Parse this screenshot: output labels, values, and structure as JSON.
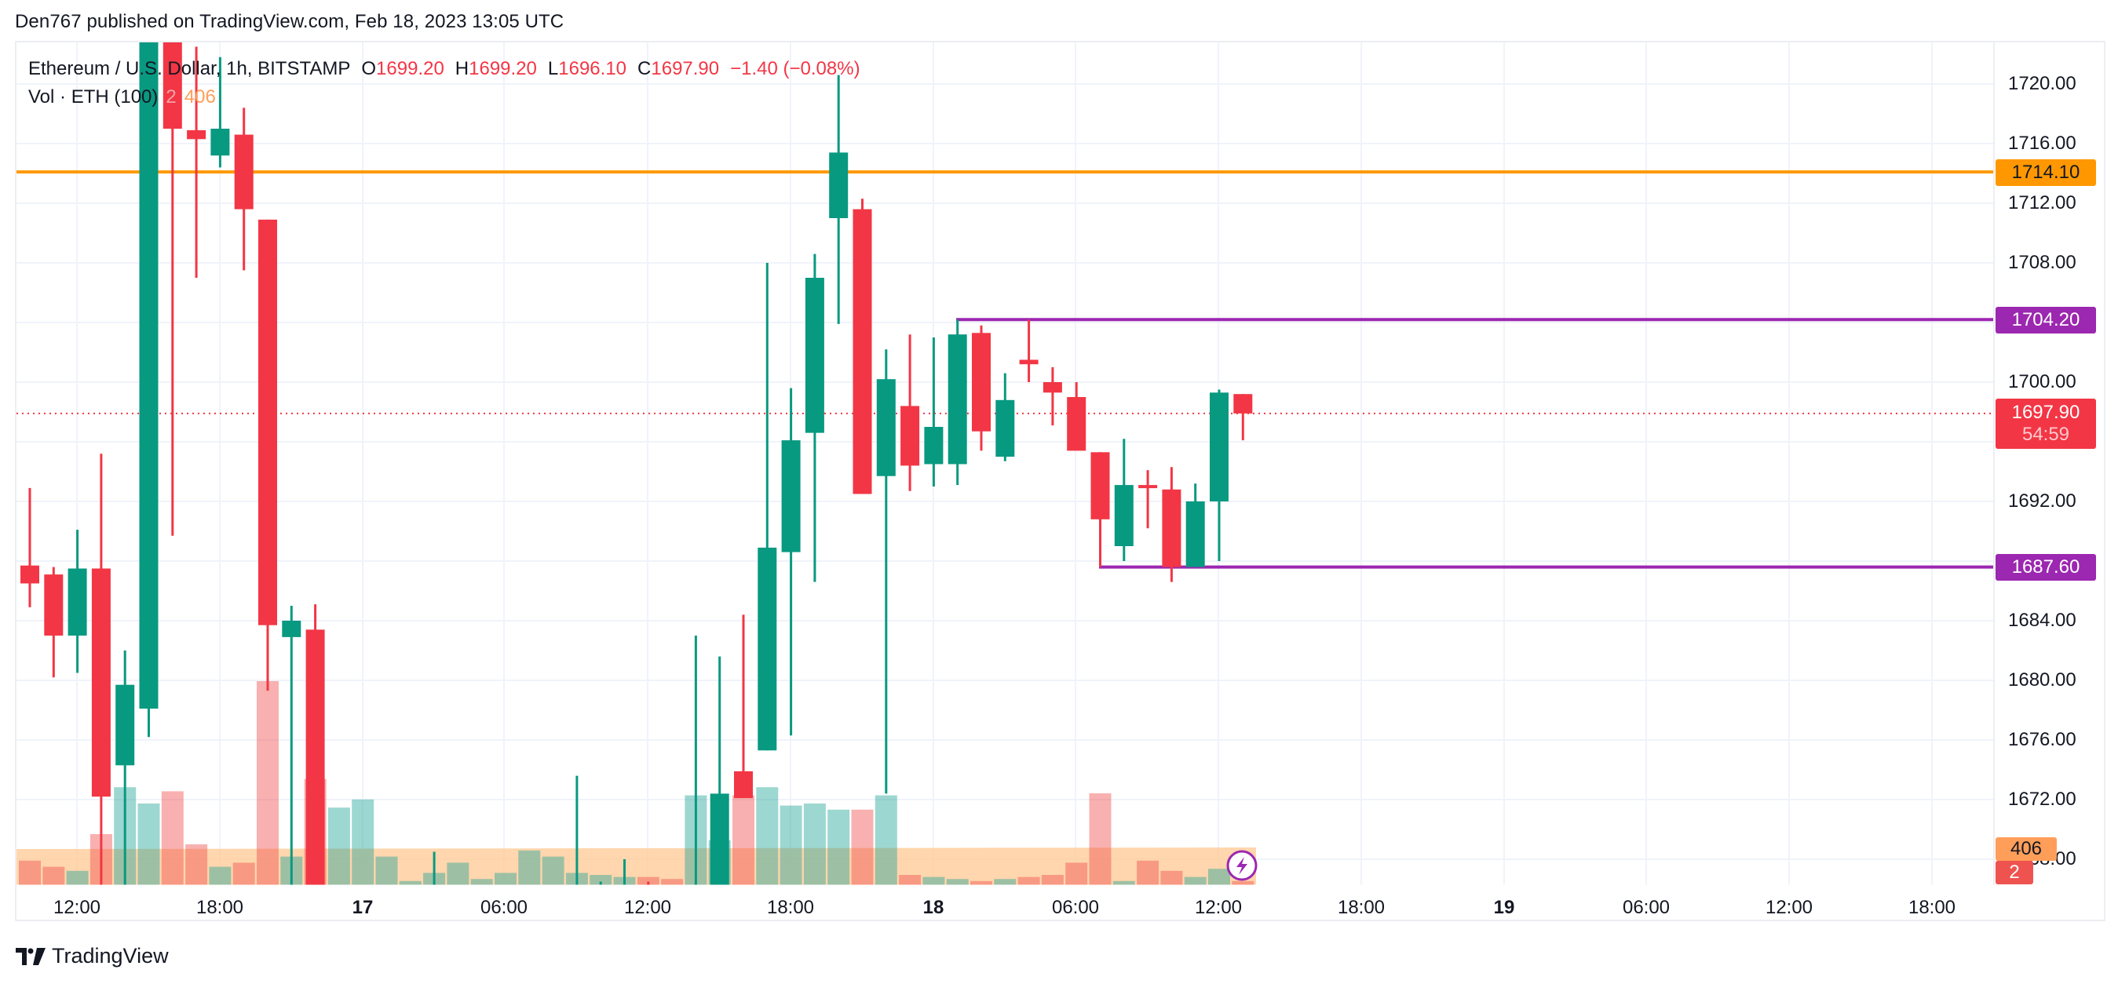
{
  "publisher": "Den767 published on TradingView.com, Feb 18, 2023 13:05 UTC",
  "legend": {
    "symbol": "Ethereum / U.S. Dollar, 1h, BITSTAMP",
    "o_label": "O",
    "o_value": "1699.20",
    "h_label": "H",
    "h_value": "1699.20",
    "l_label": "L",
    "l_value": "1696.10",
    "c_label": "C",
    "c_value": "1697.90",
    "change": "−1.40 (−0.08%)",
    "volume_label": "Vol · ETH (100)",
    "volume_value": "2",
    "volume_ma": "406"
  },
  "price_axis": {
    "ticks": [
      "1720.00",
      "1716.00",
      "1712.00",
      "1708.00",
      "1700.00",
      "1692.00",
      "1684.00",
      "1680.00",
      "1676.00",
      "1672.00",
      "1668.00"
    ],
    "labels": {
      "resistance": "1714.10",
      "range_high": "1704.20",
      "last_price": "1697.90",
      "countdown": "54:59",
      "range_low": "1687.60",
      "volume_ma": "406",
      "volume": "2"
    }
  },
  "time_axis": [
    {
      "label": "12:00",
      "bold": false
    },
    {
      "label": "18:00",
      "bold": false
    },
    {
      "label": "17",
      "bold": true
    },
    {
      "label": "06:00",
      "bold": false
    },
    {
      "label": "12:00",
      "bold": false
    },
    {
      "label": "18:00",
      "bold": false
    },
    {
      "label": "18",
      "bold": true
    },
    {
      "label": "06:00",
      "bold": false
    },
    {
      "label": "12:00",
      "bold": false
    },
    {
      "label": "18:00",
      "bold": false
    },
    {
      "label": "19",
      "bold": true
    },
    {
      "label": "06:00",
      "bold": false
    },
    {
      "label": "12:00",
      "bold": false
    },
    {
      "label": "18:00",
      "bold": false
    }
  ],
  "footer": {
    "brand": "TradingView"
  },
  "colors": {
    "up": "#089981",
    "down": "#f23645",
    "resistance_line": "#ff9800",
    "range_lines": "#9c27b0",
    "volume_ma_fill": "#ffcc99",
    "grid": "#f0f3fa"
  },
  "chart_data": {
    "type": "candlestick",
    "title": "Ethereum / U.S. Dollar, 1h, BITSTAMP",
    "xlabel": "",
    "ylabel": "Price (USD)",
    "ylim": [
      1667,
      1721.5
    ],
    "grid": true,
    "horizontal_lines": [
      {
        "name": "resistance",
        "price": 1714.1,
        "color": "#ff9800"
      },
      {
        "name": "range_high",
        "price": 1704.2,
        "color": "#9c27b0"
      },
      {
        "name": "range_low",
        "price": 1687.6,
        "color": "#9c27b0"
      },
      {
        "name": "last_price",
        "price": 1697.9,
        "color": "#f23645",
        "style": "dotted"
      }
    ],
    "candles": [
      {
        "o": 1687.7,
        "h": 1692.9,
        "l": 1684.9,
        "c": 1686.5,
        "v": 12
      },
      {
        "o": 1687.1,
        "h": 1687.6,
        "l": 1680.2,
        "c": 1683.0,
        "v": 9
      },
      {
        "o": 1683.0,
        "h": 1690.1,
        "l": 1680.5,
        "c": 1687.5,
        "v": 7
      },
      {
        "o": 1687.5,
        "h": 1695.2,
        "l": 1665.0,
        "c": 1672.2,
        "v": 25
      },
      {
        "o": 1674.3,
        "h": 1682.0,
        "l": 1665.0,
        "c": 1679.7,
        "v": 48
      },
      {
        "o": 1678.1,
        "h": 1725.0,
        "l": 1676.2,
        "c": 1724.0,
        "v": 40
      },
      {
        "o": 1724.0,
        "h": 1725.0,
        "l": 1689.7,
        "c": 1717.0,
        "v": 46
      },
      {
        "o": 1716.9,
        "h": 1722.5,
        "l": 1707.0,
        "c": 1716.3,
        "v": 20
      },
      {
        "o": 1715.2,
        "h": 1721.8,
        "l": 1714.4,
        "c": 1717.0,
        "v": 9
      },
      {
        "o": 1716.6,
        "h": 1718.4,
        "l": 1707.5,
        "c": 1711.6,
        "v": 11
      },
      {
        "o": 1710.9,
        "h": 1710.9,
        "l": 1679.3,
        "c": 1683.7,
        "v": 100
      },
      {
        "o": 1682.9,
        "h": 1685.0,
        "l": 1665.0,
        "c": 1684.0,
        "v": 14
      },
      {
        "o": 1683.4,
        "h": 1685.1,
        "l": 1665.0,
        "c": 1665.0,
        "v": 52
      },
      {
        "o": 1665.0,
        "h": 1665.0,
        "l": 1665.0,
        "c": 1665.0,
        "v": 38
      },
      {
        "o": 1665.0,
        "h": 1665.0,
        "l": 1665.0,
        "c": 1665.0,
        "v": 42
      },
      {
        "o": 1665.0,
        "h": 1665.0,
        "l": 1665.0,
        "c": 1665.0,
        "v": 14
      },
      {
        "o": 1665.0,
        "h": 1665.0,
        "l": 1665.0,
        "c": 1665.0,
        "v": 2
      },
      {
        "o": 1665.0,
        "h": 1668.5,
        "l": 1665.0,
        "c": 1665.0,
        "v": 6
      },
      {
        "o": 1665.0,
        "h": 1665.0,
        "l": 1665.0,
        "c": 1665.0,
        "v": 11
      },
      {
        "o": 1665.0,
        "h": 1665.0,
        "l": 1665.0,
        "c": 1665.0,
        "v": 3
      },
      {
        "o": 1665.0,
        "h": 1665.0,
        "l": 1665.0,
        "c": 1665.0,
        "v": 6
      },
      {
        "o": 1665.0,
        "h": 1665.0,
        "l": 1665.0,
        "c": 1665.0,
        "v": 17
      },
      {
        "o": 1665.0,
        "h": 1665.0,
        "l": 1665.0,
        "c": 1665.0,
        "v": 14
      },
      {
        "o": 1665.0,
        "h": 1673.6,
        "l": 1665.0,
        "c": 1665.0,
        "v": 6
      },
      {
        "o": 1665.0,
        "h": 1666.5,
        "l": 1665.0,
        "c": 1665.0,
        "v": 5
      },
      {
        "o": 1665.0,
        "h": 1668.0,
        "l": 1665.0,
        "c": 1665.5,
        "v": 4
      },
      {
        "o": 1666.2,
        "h": 1666.5,
        "l": 1665.0,
        "c": 1665.0,
        "v": 4
      },
      {
        "o": 1665.5,
        "h": 1665.5,
        "l": 1665.0,
        "c": 1665.0,
        "v": 3
      },
      {
        "o": 1665.0,
        "h": 1683.0,
        "l": 1665.0,
        "c": 1665.0,
        "v": 44
      },
      {
        "o": 1665.0,
        "h": 1681.6,
        "l": 1665.0,
        "c": 1672.4,
        "v": 22
      },
      {
        "o": 1673.9,
        "h": 1684.4,
        "l": 1672.5,
        "c": 1672.1,
        "v": 44
      },
      {
        "o": 1675.3,
        "h": 1708.0,
        "l": 1675.3,
        "c": 1688.9,
        "v": 48
      },
      {
        "o": 1688.6,
        "h": 1699.6,
        "l": 1676.3,
        "c": 1696.1,
        "v": 39
      },
      {
        "o": 1696.6,
        "h": 1708.6,
        "l": 1686.6,
        "c": 1707.0,
        "v": 40
      },
      {
        "o": 1711.0,
        "h": 1720.6,
        "l": 1703.9,
        "c": 1715.4,
        "v": 37
      },
      {
        "o": 1711.6,
        "h": 1712.3,
        "l": 1692.5,
        "c": 1692.5,
        "v": 37
      },
      {
        "o": 1693.7,
        "h": 1702.2,
        "l": 1672.4,
        "c": 1700.2,
        "v": 44
      },
      {
        "o": 1698.4,
        "h": 1703.2,
        "l": 1692.7,
        "c": 1694.4,
        "v": 5
      },
      {
        "o": 1694.5,
        "h": 1703.0,
        "l": 1693.0,
        "c": 1697.0,
        "v": 4
      },
      {
        "o": 1694.5,
        "h": 1704.2,
        "l": 1693.1,
        "c": 1703.2,
        "v": 3
      },
      {
        "o": 1703.3,
        "h": 1703.8,
        "l": 1695.4,
        "c": 1696.7,
        "v": 2
      },
      {
        "o": 1695.0,
        "h": 1700.6,
        "l": 1694.7,
        "c": 1698.8,
        "v": 3
      },
      {
        "o": 1701.5,
        "h": 1704.2,
        "l": 1700.0,
        "c": 1701.2,
        "v": 4
      },
      {
        "o": 1700.0,
        "h": 1701.0,
        "l": 1697.1,
        "c": 1699.3,
        "v": 5
      },
      {
        "o": 1699.0,
        "h": 1700.0,
        "l": 1695.8,
        "c": 1695.4,
        "v": 11
      },
      {
        "o": 1695.3,
        "h": 1695.3,
        "l": 1687.6,
        "c": 1690.8,
        "v": 45
      },
      {
        "o": 1689.0,
        "h": 1696.2,
        "l": 1688.0,
        "c": 1693.1,
        "v": 2
      },
      {
        "o": 1693.1,
        "h": 1694.1,
        "l": 1690.2,
        "c": 1693.0,
        "v": 12
      },
      {
        "o": 1692.8,
        "h": 1694.3,
        "l": 1686.6,
        "c": 1687.6,
        "v": 7
      },
      {
        "o": 1687.6,
        "h": 1693.2,
        "l": 1687.6,
        "c": 1692.0,
        "v": 4
      },
      {
        "o": 1692.0,
        "h": 1699.5,
        "l": 1688.0,
        "c": 1699.3,
        "v": 8
      },
      {
        "o": 1699.2,
        "h": 1699.2,
        "l": 1696.1,
        "c": 1697.9,
        "v": 2
      }
    ]
  }
}
